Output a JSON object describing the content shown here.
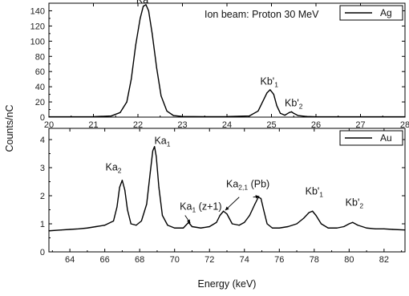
{
  "chart_data": [
    {
      "type": "line",
      "panel": "top",
      "annotation_text": "Ion beam: Proton 30 MeV",
      "xlim": [
        20,
        28
      ],
      "ylim": [
        0,
        150
      ],
      "x_ticks": [
        20,
        21,
        22,
        23,
        24,
        25,
        26,
        27,
        28
      ],
      "y_ticks": [
        0,
        20,
        40,
        60,
        80,
        100,
        120,
        140
      ],
      "legend": {
        "label": "Ag",
        "position": "top-right"
      },
      "series": [
        {
          "name": "Ag",
          "x": [
            20.0,
            20.5,
            21.0,
            21.4,
            21.6,
            21.75,
            21.85,
            21.95,
            22.05,
            22.12,
            22.18,
            22.24,
            22.32,
            22.42,
            22.52,
            22.65,
            22.8,
            23.0,
            23.5,
            24.0,
            24.5,
            24.7,
            24.8,
            24.9,
            24.97,
            25.05,
            25.12,
            25.2,
            25.3,
            25.4,
            25.45,
            25.5,
            25.6,
            25.8,
            26.0,
            27.0,
            28.0
          ],
          "y": [
            0.5,
            0.5,
            0.6,
            1.5,
            6,
            20,
            50,
            95,
            130,
            146,
            148,
            140,
            110,
            65,
            28,
            8,
            2,
            0.8,
            0.6,
            0.7,
            1.5,
            8,
            20,
            32,
            36,
            30,
            15,
            5,
            2.5,
            6,
            7,
            5,
            2,
            0.8,
            0.5,
            0.4,
            0.4
          ]
        }
      ],
      "annotations": [
        {
          "text": "Ka",
          "x": 22.1,
          "y": 150
        },
        {
          "text": "Kb'",
          "sub": "1",
          "x": 24.95,
          "y": 43
        },
        {
          "text": "Kb'",
          "sub": "2",
          "x": 25.5,
          "y": 14
        }
      ]
    },
    {
      "type": "line",
      "panel": "bottom",
      "xlabel": "Energy (keV)",
      "ylabel": "Counts/nC",
      "xlim": [
        62.8,
        83.2
      ],
      "ylim": [
        0,
        4.4
      ],
      "x_ticks": [
        64,
        66,
        68,
        70,
        72,
        74,
        76,
        78,
        80,
        82
      ],
      "y_ticks": [
        0,
        1,
        2,
        3,
        4
      ],
      "legend": {
        "label": "Au",
        "position": "top-right"
      },
      "series": [
        {
          "name": "Au",
          "x": [
            62.8,
            63.5,
            64.0,
            64.5,
            65.0,
            65.5,
            66.0,
            66.5,
            66.7,
            66.85,
            67.0,
            67.15,
            67.3,
            67.5,
            67.8,
            68.1,
            68.4,
            68.6,
            68.75,
            68.85,
            68.95,
            69.1,
            69.3,
            69.6,
            70.0,
            70.5,
            70.8,
            71.0,
            71.5,
            72.0,
            72.4,
            72.6,
            72.8,
            73.0,
            73.3,
            73.7,
            74.0,
            74.3,
            74.6,
            74.8,
            74.95,
            75.1,
            75.3,
            75.6,
            76.0,
            76.5,
            77.0,
            77.4,
            77.7,
            77.9,
            78.1,
            78.4,
            78.8,
            79.3,
            79.7,
            80.0,
            80.2,
            80.5,
            81.0,
            81.5,
            82.0,
            82.5,
            83.2
          ],
          "y": [
            0.75,
            0.78,
            0.8,
            0.82,
            0.85,
            0.9,
            0.95,
            1.1,
            1.6,
            2.3,
            2.55,
            2.2,
            1.5,
            1.0,
            0.95,
            1.1,
            1.7,
            2.8,
            3.6,
            3.75,
            3.4,
            2.3,
            1.3,
            0.95,
            0.85,
            0.85,
            1.05,
            0.9,
            0.85,
            0.9,
            1.05,
            1.3,
            1.45,
            1.35,
            1.0,
            0.95,
            1.05,
            1.3,
            1.7,
            1.95,
            1.9,
            1.5,
            1.0,
            0.85,
            0.85,
            0.9,
            1.0,
            1.2,
            1.4,
            1.45,
            1.3,
            1.0,
            0.85,
            0.85,
            0.9,
            1.0,
            1.05,
            0.95,
            0.85,
            0.82,
            0.82,
            0.8,
            0.78
          ]
        }
      ],
      "annotations": [
        {
          "text": "Ka",
          "sub": "2",
          "x": 66.5,
          "y": 2.9
        },
        {
          "text": "Ka",
          "sub": "1",
          "x": 69.3,
          "y": 3.85
        },
        {
          "text": "Ka",
          "sub": "1",
          "suffix": " (z+1)",
          "x": 71.5,
          "y": 1.5
        },
        {
          "text": "Ka",
          "sub": "2,1",
          "suffix": " (Pb)",
          "x": 74.2,
          "y": 2.3
        },
        {
          "text": "Kb'",
          "sub": "1",
          "x": 78.0,
          "y": 2.05
        },
        {
          "text": "Kb'",
          "sub": "2",
          "x": 80.3,
          "y": 1.65
        }
      ]
    }
  ]
}
